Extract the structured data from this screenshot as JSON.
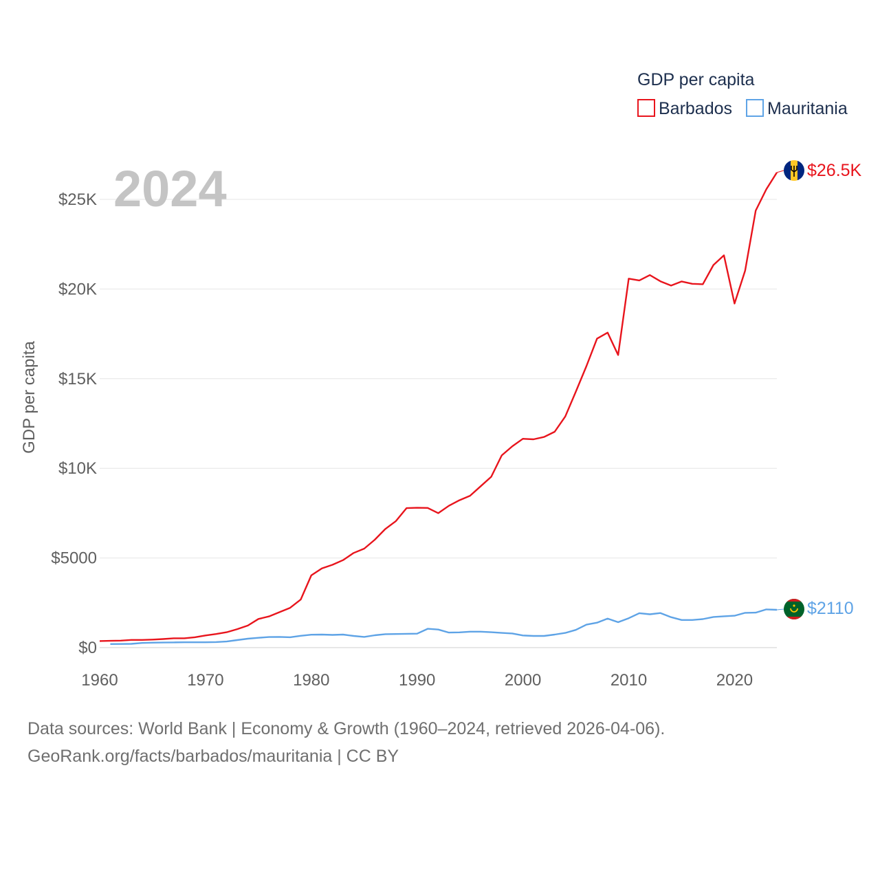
{
  "chart_data": {
    "type": "line",
    "year_label": "2024",
    "ylabel": "GDP per capita",
    "xlabel": "",
    "ylim": [
      0,
      26500
    ],
    "xlim": [
      1960,
      2024
    ],
    "y_ticks": [
      {
        "value": 0,
        "label": "$0"
      },
      {
        "value": 5000,
        "label": "$5000"
      },
      {
        "value": 10000,
        "label": "$10K"
      },
      {
        "value": 15000,
        "label": "$15K"
      },
      {
        "value": 20000,
        "label": "$20K"
      },
      {
        "value": 25000,
        "label": "$25K"
      }
    ],
    "x_ticks": [
      {
        "value": 1960,
        "label": "1960"
      },
      {
        "value": 1970,
        "label": "1970"
      },
      {
        "value": 1980,
        "label": "1980"
      },
      {
        "value": 1990,
        "label": "1990"
      },
      {
        "value": 2000,
        "label": "2000"
      },
      {
        "value": 2010,
        "label": "2010"
      },
      {
        "value": 2020,
        "label": "2020"
      }
    ],
    "legend": {
      "title": "GDP per capita",
      "position": "top-right"
    },
    "series": [
      {
        "name": "Barbados",
        "color": "#e8141c",
        "end_label": "$26.5K",
        "flag": "barbados-flag-icon",
        "x": [
          1960,
          1961,
          1962,
          1963,
          1964,
          1965,
          1966,
          1967,
          1968,
          1969,
          1970,
          1971,
          1972,
          1973,
          1974,
          1975,
          1976,
          1977,
          1978,
          1979,
          1980,
          1981,
          1982,
          1983,
          1984,
          1985,
          1986,
          1987,
          1988,
          1989,
          1990,
          1991,
          1992,
          1993,
          1994,
          1995,
          1996,
          1997,
          1998,
          1999,
          2000,
          2001,
          2002,
          2003,
          2004,
          2005,
          2006,
          2007,
          2008,
          2009,
          2010,
          2011,
          2012,
          2013,
          2014,
          2015,
          2016,
          2017,
          2018,
          2019,
          2020,
          2021,
          2022,
          2023,
          2024
        ],
        "values": [
          370,
          380,
          390,
          430,
          430,
          450,
          480,
          520,
          520,
          580,
          680,
          760,
          860,
          1030,
          1230,
          1600,
          1740,
          1980,
          2220,
          2680,
          4030,
          4420,
          4620,
          4880,
          5280,
          5520,
          6020,
          6620,
          7060,
          7780,
          7800,
          7790,
          7500,
          7910,
          8220,
          8470,
          9000,
          9530,
          10720,
          11230,
          11650,
          11620,
          11750,
          12040,
          12890,
          14280,
          15700,
          17230,
          17570,
          16320,
          20580,
          20480,
          20780,
          20430,
          20190,
          20420,
          20290,
          20270,
          21340,
          21880,
          19190,
          21020,
          24370,
          25560,
          26500
        ]
      },
      {
        "name": "Mauritania",
        "color": "#5ea3e6",
        "end_label": "$2110",
        "flag": "mauritania-flag-icon",
        "x": [
          1961,
          1962,
          1963,
          1964,
          1965,
          1966,
          1967,
          1968,
          1969,
          1970,
          1971,
          1972,
          1973,
          1974,
          1975,
          1976,
          1977,
          1978,
          1979,
          1980,
          1981,
          1982,
          1983,
          1984,
          1985,
          1986,
          1987,
          1988,
          1989,
          1990,
          1991,
          1992,
          1993,
          1994,
          1995,
          1996,
          1997,
          1998,
          1999,
          2000,
          2001,
          2002,
          2003,
          2004,
          2005,
          2006,
          2007,
          2008,
          2009,
          2010,
          2011,
          2012,
          2013,
          2014,
          2015,
          2016,
          2017,
          2018,
          2019,
          2020,
          2021,
          2022,
          2023,
          2024
        ],
        "values": [
          200,
          205,
          210,
          260,
          275,
          285,
          290,
          300,
          300,
          300,
          310,
          340,
          420,
          500,
          550,
          590,
          600,
          580,
          660,
          720,
          730,
          710,
          730,
          650,
          600,
          690,
          750,
          760,
          770,
          780,
          1050,
          1010,
          840,
          850,
          890,
          890,
          860,
          820,
          790,
          680,
          650,
          650,
          730,
          820,
          990,
          1280,
          1390,
          1620,
          1420,
          1640,
          1920,
          1860,
          1930,
          1700,
          1540,
          1540,
          1590,
          1710,
          1750,
          1780,
          1940,
          1950,
          2130,
          2110
        ]
      }
    ]
  },
  "footer": {
    "line1": "Data sources: World Bank | Economy & Growth (1960–2024, retrieved 2026-04-06).",
    "line2": "GeoRank.org/facts/barbados/mauritania | CC BY"
  }
}
